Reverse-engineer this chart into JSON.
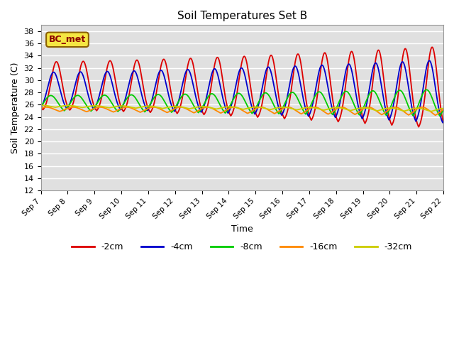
{
  "title": "Soil Temperatures Set B",
  "xlabel": "Time",
  "ylabel": "Soil Temperature (C)",
  "ylim": [
    12,
    39
  ],
  "xlim": [
    0,
    360
  ],
  "annotation_label": "BC_met",
  "legend_labels": [
    "-2cm",
    "-4cm",
    "-8cm",
    "-16cm",
    "-32cm"
  ],
  "legend_colors": [
    "#dd0000",
    "#0000cc",
    "#00cc00",
    "#ff8800",
    "#cccc00"
  ],
  "xtick_labels": [
    "Sep 7",
    "Sep 8",
    "Sep 9",
    "Sep 10",
    "Sep 11",
    "Sep 12",
    "Sep 13",
    "Sep 14",
    "Sep 15",
    "Sep 16",
    "Sep 17",
    "Sep 18",
    "Sep 19",
    "Sep 20",
    "Sep 21",
    "Sep 22"
  ],
  "xtick_positions": [
    0,
    24,
    48,
    72,
    96,
    120,
    144,
    168,
    192,
    216,
    240,
    264,
    288,
    312,
    336,
    360
  ]
}
